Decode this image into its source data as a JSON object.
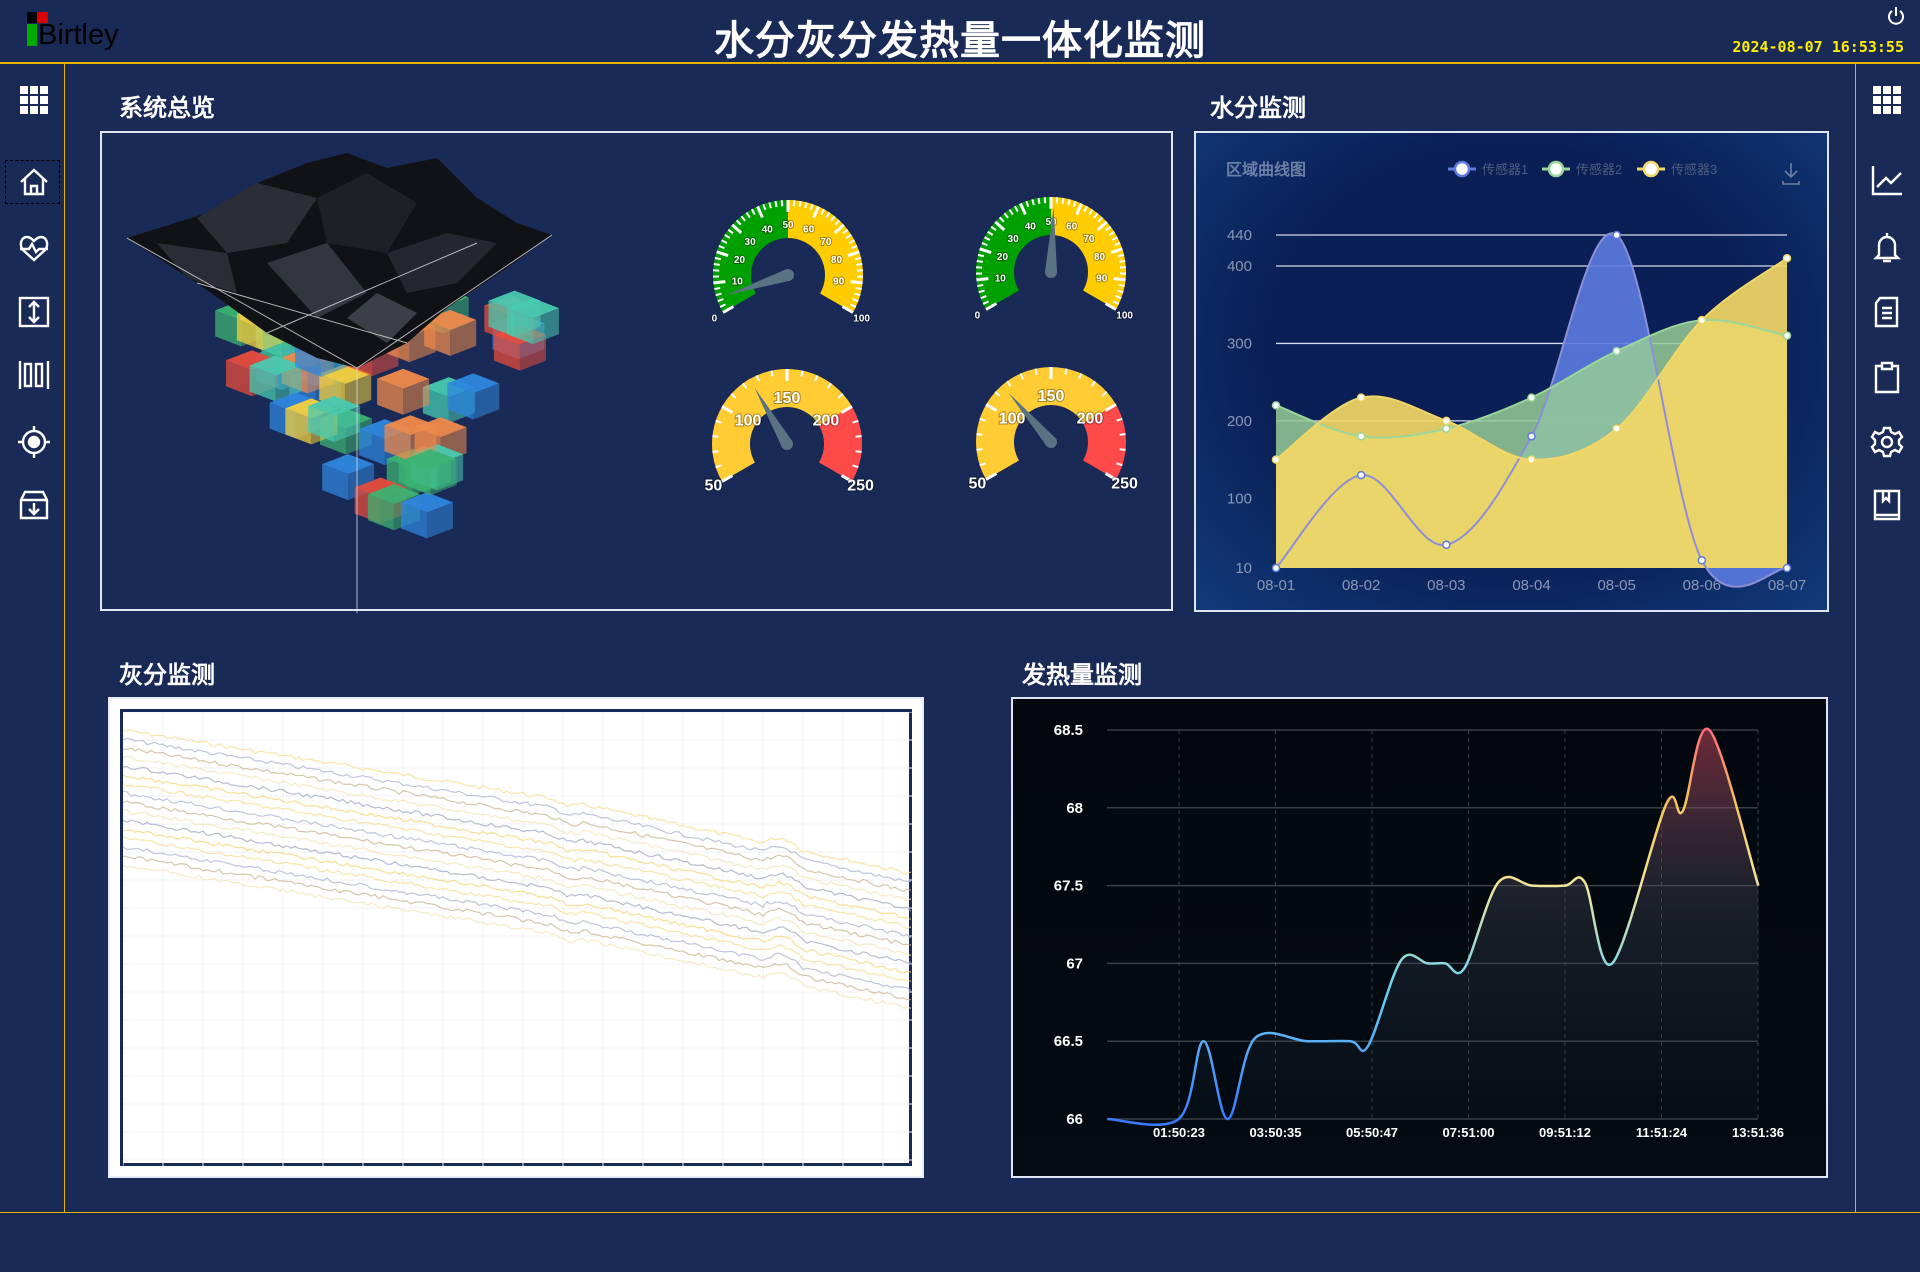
{
  "header": {
    "logo_text": "Birtley",
    "title": "水分灰分发热量一体化监测",
    "datetime": "2024-08-07  16:53:55",
    "power_icon": "power-icon"
  },
  "left_sidebar": [
    {
      "icon": "grid-icon"
    },
    {
      "icon": "home-icon",
      "selected": true
    },
    {
      "icon": "heart-rate-icon"
    },
    {
      "icon": "expand-vertical-icon"
    },
    {
      "icon": "barcode-icon"
    },
    {
      "icon": "target-icon"
    },
    {
      "icon": "archive-download-icon"
    }
  ],
  "right_sidebar": [
    {
      "icon": "grid-icon"
    },
    {
      "icon": "line-chart-icon"
    },
    {
      "icon": "bell-icon"
    },
    {
      "icon": "document-icon"
    },
    {
      "icon": "clipboard-icon"
    },
    {
      "icon": "gear-icon"
    },
    {
      "icon": "book-icon"
    }
  ],
  "panels": {
    "overview": "系统总览",
    "moisture": "水分监测",
    "ash": "灰分监测",
    "heat": "发热量监测"
  },
  "colors": {
    "background": "#1a2a56",
    "accent_line": "#e8b400",
    "datetime": "#ffee00"
  },
  "gauges": [
    {
      "min": 0,
      "max": 100,
      "labels": [
        0,
        10,
        20,
        30,
        40,
        50,
        60,
        70,
        80,
        90,
        100
      ],
      "value": 5,
      "bands": [
        {
          "from": 0,
          "to": 50,
          "color": "#00a000"
        },
        {
          "from": 50,
          "to": 100,
          "color": "#ffcc00"
        }
      ]
    },
    {
      "min": 0,
      "max": 100,
      "labels": [
        0,
        10,
        20,
        30,
        40,
        50,
        60,
        70,
        80,
        90,
        100
      ],
      "value": 51,
      "bands": [
        {
          "from": 0,
          "to": 50,
          "color": "#00a000"
        },
        {
          "from": 50,
          "to": 100,
          "color": "#ffcc00"
        }
      ]
    },
    {
      "min": 50,
      "max": 250,
      "labels": [
        50,
        100,
        150,
        200,
        250
      ],
      "value": 125,
      "bands": [
        {
          "from": 50,
          "to": 200,
          "color": "#ffcc33"
        },
        {
          "from": 200,
          "to": 250,
          "color": "#ff4a4a"
        }
      ]
    },
    {
      "min": 50,
      "max": 250,
      "labels": [
        50,
        100,
        150,
        200,
        250
      ],
      "value": 116,
      "bands": [
        {
          "from": 50,
          "to": 200,
          "color": "#ffcc33"
        },
        {
          "from": 200,
          "to": 250,
          "color": "#ff4a4a"
        }
      ]
    }
  ],
  "chart_data": [
    {
      "type": "area",
      "title": "区域曲线图",
      "categories": [
        "08-01",
        "08-02",
        "08-03",
        "08-04",
        "08-05",
        "08-06",
        "08-07"
      ],
      "yticks": [
        10,
        100,
        200,
        300,
        400,
        440
      ],
      "ylim": [
        10,
        440
      ],
      "grid": true,
      "legend": "top-right",
      "series": [
        {
          "name": "传感器1",
          "color": "#5b7be0",
          "values": [
            10,
            130,
            40,
            180,
            440,
            20,
            10
          ]
        },
        {
          "name": "传感器2",
          "color": "#9bd69b",
          "values": [
            220,
            180,
            190,
            230,
            290,
            330,
            310
          ]
        },
        {
          "name": "传感器3",
          "color": "#f2d766",
          "values": [
            150,
            230,
            200,
            150,
            190,
            330,
            410
          ]
        }
      ]
    },
    {
      "type": "line",
      "xticks": [
        "01:50:23",
        "03:50:35",
        "05:50:47",
        "07:51:00",
        "09:51:12",
        "11:51:24",
        "13:51:36"
      ],
      "yticks": [
        "66",
        "66.5",
        "67",
        "67.5",
        "68",
        "68.5"
      ],
      "ylim": [
        66,
        68.5
      ],
      "grid": true,
      "x": [
        "00:21",
        "01:50",
        "02:21",
        "02:51",
        "03:25",
        "04:30",
        "05:24",
        "05:46",
        "06:27",
        "07:00",
        "07:22",
        "07:46",
        "08:28",
        "09:10",
        "09:51",
        "10:16",
        "10:50",
        "11:57",
        "12:18",
        "12:51",
        "13:52"
      ],
      "y": [
        66,
        66,
        66.5,
        66,
        66.52,
        66.5,
        66.5,
        66.47,
        67.02,
        67,
        67,
        66.97,
        67.52,
        67.5,
        67.5,
        67.52,
        67,
        68.02,
        67.98,
        68.5,
        67.5
      ]
    }
  ]
}
